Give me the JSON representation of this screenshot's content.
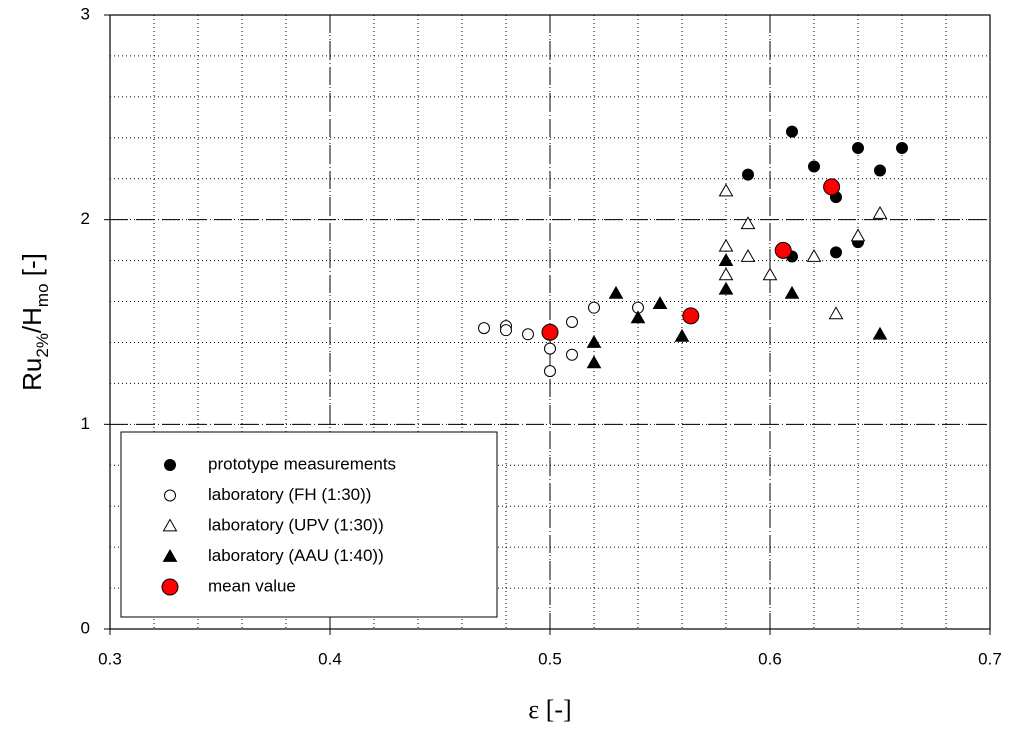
{
  "chart_data": {
    "type": "scatter",
    "x_label": "ε [-]",
    "y_label_parts": [
      "Ru",
      "2%",
      "/H",
      "mo",
      " [-]"
    ],
    "xlim": [
      0.3,
      0.7
    ],
    "ylim": [
      0,
      3
    ],
    "xticks": [
      0.3,
      0.4,
      0.5,
      0.6,
      0.7
    ],
    "yticks": [
      0,
      1,
      2,
      3
    ],
    "grid": true,
    "minor_grid": {
      "x": 0.02,
      "y": 0.2
    },
    "legend": "lower left",
    "series": [
      {
        "name": "prototype measurements",
        "color": "#000000",
        "marker": "circle",
        "filled": true,
        "x": [
          0.61,
          0.59,
          0.62,
          0.64,
          0.66,
          0.65,
          0.63,
          0.61,
          0.63,
          0.64
        ],
        "values": [
          2.43,
          2.22,
          2.26,
          2.35,
          2.35,
          2.24,
          2.11,
          1.82,
          1.84,
          1.89
        ]
      },
      {
        "name": "laboratory (FH (1:30))",
        "color": "#000000",
        "marker": "circle",
        "filled": false,
        "x": [
          0.47,
          0.48,
          0.48,
          0.49,
          0.5,
          0.5,
          0.51,
          0.51,
          0.52,
          0.54
        ],
        "values": [
          1.47,
          1.48,
          1.46,
          1.44,
          1.37,
          1.26,
          1.5,
          1.34,
          1.57,
          1.57
        ]
      },
      {
        "name": "laboratory (UPV (1:30))",
        "color": "#000000",
        "marker": "triangle",
        "filled": false,
        "x": [
          0.58,
          0.59,
          0.58,
          0.59,
          0.58,
          0.6,
          0.62,
          0.64,
          0.65,
          0.63
        ],
        "values": [
          2.14,
          1.98,
          1.87,
          1.82,
          1.73,
          1.73,
          1.82,
          1.92,
          2.03,
          1.54
        ]
      },
      {
        "name": "laboratory (AAU (1:40))",
        "color": "#000000",
        "marker": "triangle",
        "filled": true,
        "x": [
          0.52,
          0.52,
          0.53,
          0.54,
          0.55,
          0.56,
          0.58,
          0.58,
          0.61,
          0.65
        ],
        "values": [
          1.4,
          1.3,
          1.64,
          1.52,
          1.59,
          1.43,
          1.8,
          1.66,
          1.64,
          1.44
        ]
      },
      {
        "name": "mean value",
        "color": "#ff0000",
        "marker": "big-circle",
        "filled": true,
        "x": [
          0.5,
          0.564,
          0.606,
          0.628
        ],
        "values": [
          1.45,
          1.53,
          1.85,
          2.16
        ]
      }
    ]
  }
}
